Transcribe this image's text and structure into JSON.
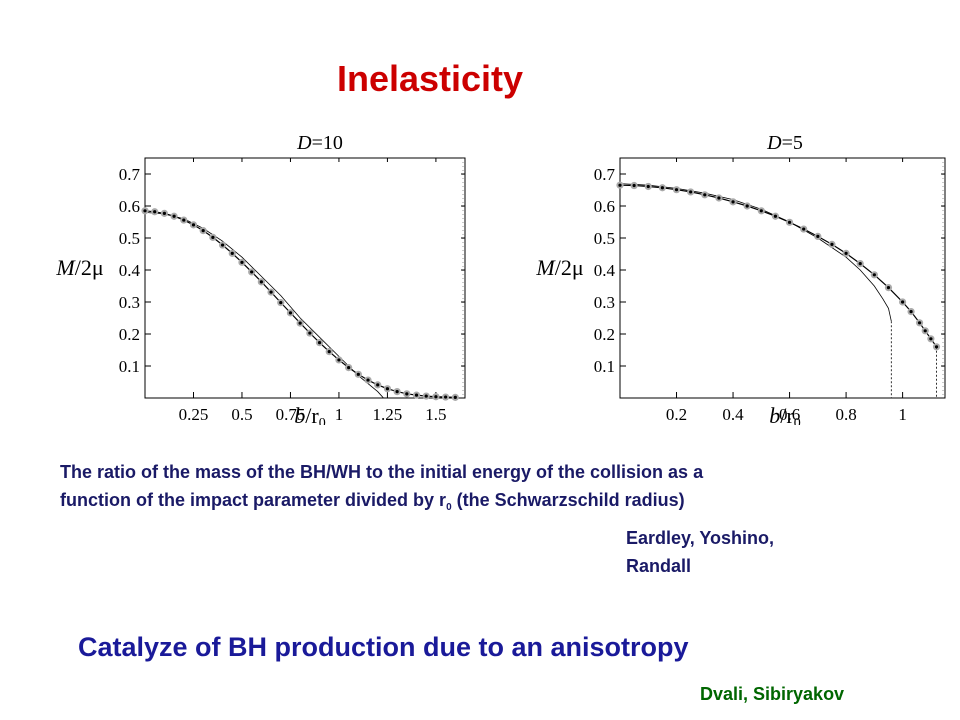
{
  "slide": {
    "title": "Inelasticity",
    "caption_line1": "The ratio of the mass of the BH/WH  to the initial energy of the collision  as a",
    "caption_line2_pre": "function of the impact parameter divided by  r",
    "caption_subscript": "0",
    "caption_line2_post": " (the Schwarzschild radius)",
    "credit_1_line1": "Eardley, Yoshino,",
    "credit_1_line2": "Randall",
    "headline": "Catalyze of BH production due to an anisotropy",
    "credit_2": "Dvali,  Sibiryakov"
  },
  "chart_data": [
    {
      "type": "line",
      "title_D": "D",
      "title_value": "=10",
      "ylabel_M": "M",
      "ylabel_rest": "/2μ",
      "xlabel_b": "b",
      "xlabel_r": "/r",
      "xlabel_sub": "0",
      "xlim": [
        0,
        1.65
      ],
      "ylim": [
        0,
        0.75
      ],
      "xticks": [
        0.25,
        0.5,
        0.75,
        1,
        1.25,
        1.5
      ],
      "xtick_labels": [
        "0.25",
        "0.5",
        "0.75",
        "1",
        "1.25",
        "1.5"
      ],
      "yticks": [
        0.1,
        0.2,
        0.3,
        0.4,
        0.5,
        0.6,
        0.7
      ],
      "ytick_labels": [
        "0.1",
        "0.2",
        "0.3",
        "0.4",
        "0.5",
        "0.6",
        "0.7"
      ],
      "series": [
        {
          "style": "solid-thin",
          "x": [
            0,
            0.1,
            0.2,
            0.3,
            0.4,
            0.5,
            0.6,
            0.7,
            0.8,
            0.9,
            1.0,
            1.1,
            1.2,
            1.23
          ],
          "y": [
            0.58,
            0.575,
            0.56,
            0.53,
            0.49,
            0.44,
            0.38,
            0.32,
            0.25,
            0.19,
            0.13,
            0.07,
            0.02,
            0.0
          ]
        },
        {
          "style": "dotted-gray",
          "x": [
            0,
            0.05,
            0.1,
            0.15,
            0.2,
            0.25,
            0.3,
            0.35,
            0.4,
            0.45,
            0.5,
            0.55,
            0.6,
            0.65,
            0.7,
            0.75,
            0.8,
            0.85,
            0.9,
            0.95,
            1.0,
            1.05,
            1.1,
            1.15,
            1.2,
            1.25,
            1.3,
            1.35,
            1.4,
            1.45,
            1.5,
            1.55,
            1.6
          ],
          "y": [
            0.585,
            0.582,
            0.577,
            0.568,
            0.556,
            0.541,
            0.523,
            0.502,
            0.478,
            0.452,
            0.424,
            0.394,
            0.363,
            0.331,
            0.298,
            0.266,
            0.234,
            0.203,
            0.173,
            0.145,
            0.119,
            0.095,
            0.074,
            0.056,
            0.041,
            0.029,
            0.02,
            0.013,
            0.009,
            0.006,
            0.004,
            0.003,
            0.002
          ]
        }
      ]
    },
    {
      "type": "line",
      "title_D": "D",
      "title_value": "=5",
      "ylabel_M": "M",
      "ylabel_rest": "/2μ",
      "xlabel_b": "b",
      "xlabel_r": "/r",
      "xlabel_sub": "0",
      "xlim": [
        0,
        1.15
      ],
      "ylim": [
        0,
        0.75
      ],
      "xticks": [
        0.2,
        0.4,
        0.6,
        0.8,
        1
      ],
      "xtick_labels": [
        "0.2",
        "0.4",
        "0.6",
        "0.8",
        "1"
      ],
      "yticks": [
        0.1,
        0.2,
        0.3,
        0.4,
        0.5,
        0.6,
        0.7
      ],
      "ytick_labels": [
        "0.1",
        "0.2",
        "0.3",
        "0.4",
        "0.5",
        "0.6",
        "0.7"
      ],
      "series": [
        {
          "style": "solid-thin",
          "x": [
            0,
            0.1,
            0.2,
            0.3,
            0.4,
            0.5,
            0.6,
            0.7,
            0.8,
            0.85,
            0.9,
            0.93,
            0.95,
            0.96
          ],
          "y": [
            0.67,
            0.665,
            0.655,
            0.64,
            0.62,
            0.59,
            0.55,
            0.5,
            0.44,
            0.4,
            0.35,
            0.31,
            0.28,
            0.24
          ]
        },
        {
          "style": "dotted-gray",
          "x": [
            0,
            0.05,
            0.1,
            0.15,
            0.2,
            0.25,
            0.3,
            0.35,
            0.4,
            0.45,
            0.5,
            0.55,
            0.6,
            0.65,
            0.7,
            0.75,
            0.8,
            0.85,
            0.9,
            0.95,
            1.0,
            1.03,
            1.06,
            1.08,
            1.1,
            1.12
          ],
          "y": [
            0.665,
            0.664,
            0.661,
            0.657,
            0.651,
            0.644,
            0.635,
            0.625,
            0.613,
            0.6,
            0.585,
            0.568,
            0.549,
            0.528,
            0.505,
            0.48,
            0.452,
            0.42,
            0.385,
            0.345,
            0.3,
            0.27,
            0.235,
            0.21,
            0.185,
            0.16
          ]
        }
      ],
      "vlines": [
        {
          "x": 0.96,
          "y_top": 0.24
        },
        {
          "x": 1.12,
          "y_top": 0.16
        }
      ]
    }
  ]
}
